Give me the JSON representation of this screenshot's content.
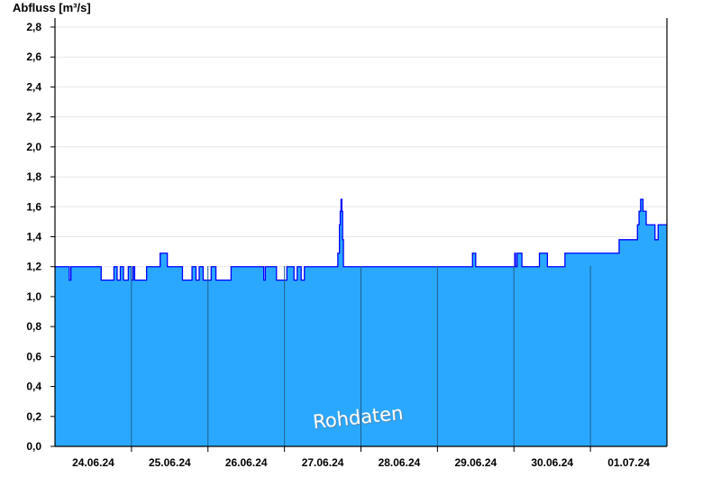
{
  "chart_data": {
    "type": "area",
    "step": true,
    "title": "",
    "ylabel": "Abfluss [m³/s]",
    "xlabel": "",
    "watermark": "Rohdaten",
    "xlim": [
      "2024-06-24 00:00",
      "2024-07-02 00:00"
    ],
    "ylim": [
      0,
      2.8
    ],
    "yticks": [
      "0,0",
      "0,2",
      "0,4",
      "0,6",
      "0,8",
      "1,0",
      "1,2",
      "1,4",
      "1,6",
      "1,8",
      "2,0",
      "2,2",
      "2,4",
      "2,6",
      "2,8"
    ],
    "xticks": [
      "24.06.24",
      "25.06.24",
      "26.06.24",
      "27.06.24",
      "28.06.24",
      "29.06.24",
      "30.06.24",
      "01.07.24"
    ],
    "grid": "horizontal",
    "colors": {
      "fill": "#2aa8ff",
      "line": "#0000ff",
      "day_lines": "#1f5f8f",
      "grid": "#e8e8e8"
    },
    "series": [
      {
        "points": [
          [
            "2024-06-24 00:00",
            1.2
          ],
          [
            "2024-06-24 04:30",
            1.11
          ],
          [
            "2024-06-24 05:00",
            1.2
          ],
          [
            "2024-06-24 14:30",
            1.11
          ],
          [
            "2024-06-24 18:30",
            1.2
          ],
          [
            "2024-06-24 19:30",
            1.11
          ],
          [
            "2024-06-24 20:30",
            1.2
          ],
          [
            "2024-06-24 21:30",
            1.11
          ],
          [
            "2024-06-24 23:00",
            1.2
          ],
          [
            "2024-06-25 00:00",
            1.11
          ],
          [
            "2024-06-25 00:30",
            1.2
          ],
          [
            "2024-06-25 01:00",
            1.11
          ],
          [
            "2024-06-25 04:45",
            1.2
          ],
          [
            "2024-06-25 09:00",
            1.29
          ],
          [
            "2024-06-25 11:15",
            1.2
          ],
          [
            "2024-06-25 16:00",
            1.11
          ],
          [
            "2024-06-25 19:00",
            1.2
          ],
          [
            "2024-06-25 20:15",
            1.11
          ],
          [
            "2024-06-25 21:15",
            1.2
          ],
          [
            "2024-06-25 22:30",
            1.11
          ],
          [
            "2024-06-26 01:00",
            1.2
          ],
          [
            "2024-06-26 02:30",
            1.11
          ],
          [
            "2024-06-26 07:15",
            1.2
          ],
          [
            "2024-06-26 17:30",
            1.11
          ],
          [
            "2024-06-26 18:00",
            1.2
          ],
          [
            "2024-06-26 21:30",
            1.11
          ],
          [
            "2024-06-27 00:45",
            1.2
          ],
          [
            "2024-06-27 03:00",
            1.11
          ],
          [
            "2024-06-27 04:00",
            1.2
          ],
          [
            "2024-06-27 05:15",
            1.11
          ],
          [
            "2024-06-27 06:15",
            1.2
          ],
          [
            "2024-06-27 16:45",
            1.29
          ],
          [
            "2024-06-27 17:15",
            1.48
          ],
          [
            "2024-06-27 17:30",
            1.57
          ],
          [
            "2024-06-27 17:45",
            1.65
          ],
          [
            "2024-06-27 18:00",
            1.57
          ],
          [
            "2024-06-27 18:15",
            1.38
          ],
          [
            "2024-06-27 18:30",
            1.2
          ],
          [
            "2024-06-29 11:00",
            1.29
          ],
          [
            "2024-06-29 12:00",
            1.2
          ],
          [
            "2024-06-30 00:15",
            1.29
          ],
          [
            "2024-06-30 00:30",
            1.2
          ],
          [
            "2024-06-30 01:00",
            1.29
          ],
          [
            "2024-06-30 02:30",
            1.2
          ],
          [
            "2024-06-30 08:00",
            1.29
          ],
          [
            "2024-06-30 10:30",
            1.2
          ],
          [
            "2024-06-30 16:00",
            1.29
          ],
          [
            "2024-07-01 09:00",
            1.38
          ],
          [
            "2024-07-01 14:45",
            1.48
          ],
          [
            "2024-07-01 15:15",
            1.57
          ],
          [
            "2024-07-01 15:45",
            1.65
          ],
          [
            "2024-07-01 16:30",
            1.57
          ],
          [
            "2024-07-01 17:30",
            1.48
          ],
          [
            "2024-07-01 20:15",
            1.38
          ],
          [
            "2024-07-01 21:15",
            1.48
          ],
          [
            "2024-07-02 00:00",
            1.48
          ]
        ]
      }
    ]
  }
}
